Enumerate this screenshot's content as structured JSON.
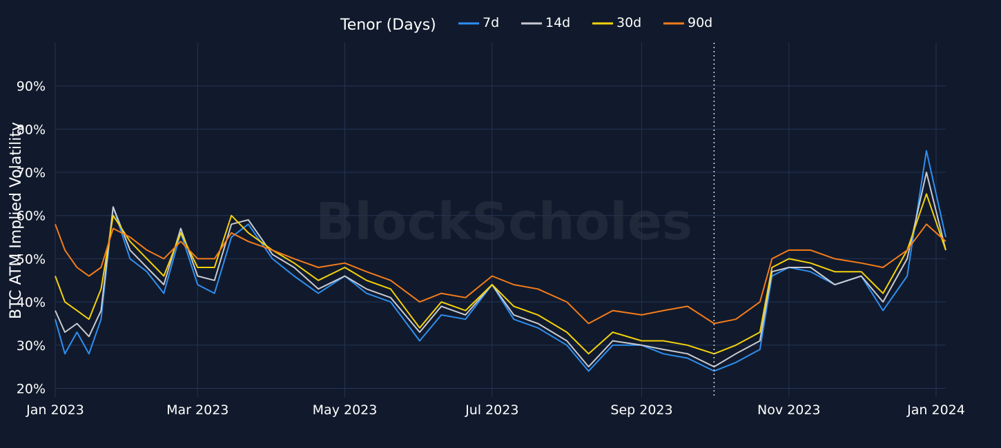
{
  "watermark": "BlockScholes",
  "chart_data": {
    "type": "line",
    "ylabel": "BTC ATM Implied Volatility",
    "legend_title": "Tenor (Days)",
    "legend_position": "top-center",
    "grid": true,
    "y_ticks": [
      "20%",
      "30%",
      "40%",
      "50%",
      "60%",
      "70%",
      "80%",
      "90%"
    ],
    "y_tick_values": [
      20,
      30,
      40,
      50,
      60,
      70,
      80,
      90
    ],
    "x_tick_labels": [
      "Jan 2023",
      "Mar 2023",
      "May 2023",
      "Jul 2023",
      "Sep 2023",
      "Nov 2023",
      "Jan 2024"
    ],
    "x_tick_dates": [
      "2023-01-01",
      "2023-03-01",
      "2023-05-01",
      "2023-07-01",
      "2023-09-01",
      "2023-11-01",
      "2024-01-01"
    ],
    "xlim": [
      "2023-01-01",
      "2024-01-05"
    ],
    "ylim": [
      18,
      100
    ],
    "vline_date": "2023-10-01",
    "colors": {
      "7d": "#2e8ff0",
      "14d": "#c8cbd2",
      "30d": "#f5d20a",
      "90d": "#f57c1a"
    },
    "dates": [
      "2023-01-01",
      "2023-01-05",
      "2023-01-10",
      "2023-01-15",
      "2023-01-20",
      "2023-01-25",
      "2023-02-01",
      "2023-02-08",
      "2023-02-15",
      "2023-02-22",
      "2023-03-01",
      "2023-03-08",
      "2023-03-15",
      "2023-03-22",
      "2023-04-01",
      "2023-04-10",
      "2023-04-20",
      "2023-05-01",
      "2023-05-10",
      "2023-05-20",
      "2023-06-01",
      "2023-06-10",
      "2023-06-20",
      "2023-07-01",
      "2023-07-10",
      "2023-07-20",
      "2023-08-01",
      "2023-08-10",
      "2023-08-20",
      "2023-09-01",
      "2023-09-10",
      "2023-09-20",
      "2023-10-01",
      "2023-10-10",
      "2023-10-20",
      "2023-10-25",
      "2023-11-01",
      "2023-11-10",
      "2023-11-20",
      "2023-12-01",
      "2023-12-10",
      "2023-12-20",
      "2023-12-28",
      "2024-01-05"
    ],
    "series": [
      {
        "name": "7d",
        "values": [
          36,
          28,
          33,
          28,
          36,
          62,
          50,
          47,
          42,
          56,
          44,
          42,
          55,
          58,
          50,
          46,
          42,
          46,
          42,
          40,
          31,
          37,
          36,
          44,
          36,
          34,
          30,
          24,
          30,
          30,
          28,
          27,
          24,
          26,
          29,
          46,
          48,
          47,
          44,
          46,
          38,
          46,
          75,
          55
        ]
      },
      {
        "name": "14d",
        "values": [
          38,
          33,
          35,
          32,
          38,
          62,
          52,
          48,
          44,
          57,
          46,
          45,
          58,
          59,
          51,
          48,
          43,
          46,
          43,
          41,
          33,
          39,
          37,
          44,
          37,
          35,
          31,
          25,
          31,
          30,
          29,
          28,
          25,
          28,
          31,
          47,
          48,
          48,
          44,
          46,
          40,
          50,
          70,
          52
        ]
      },
      {
        "name": "30d",
        "values": [
          46,
          40,
          38,
          36,
          43,
          60,
          54,
          50,
          46,
          56,
          48,
          48,
          60,
          56,
          52,
          49,
          45,
          48,
          45,
          43,
          34,
          40,
          38,
          44,
          39,
          37,
          33,
          28,
          33,
          31,
          31,
          30,
          28,
          30,
          33,
          48,
          50,
          49,
          47,
          47,
          42,
          52,
          65,
          52
        ]
      },
      {
        "name": "90d",
        "values": [
          58,
          52,
          48,
          46,
          48,
          57,
          55,
          52,
          50,
          54,
          50,
          50,
          56,
          54,
          52,
          50,
          48,
          49,
          47,
          45,
          40,
          42,
          41,
          46,
          44,
          43,
          40,
          35,
          38,
          37,
          38,
          39,
          35,
          36,
          40,
          50,
          52,
          52,
          50,
          49,
          48,
          52,
          58,
          54
        ]
      }
    ]
  }
}
